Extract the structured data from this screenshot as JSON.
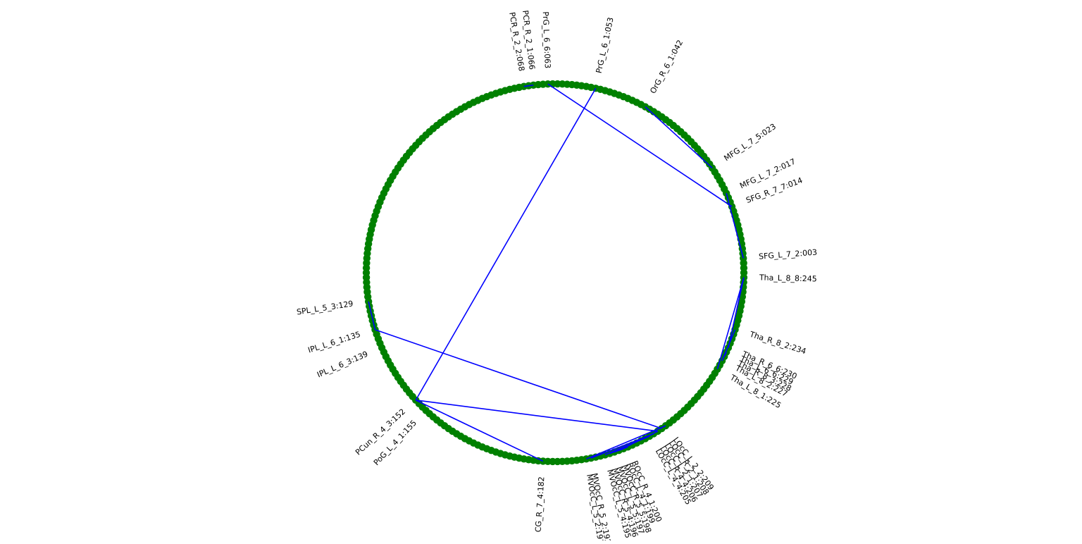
{
  "diagram": {
    "type": "connectogram",
    "node_count": 246,
    "colors": {
      "node": "#008000",
      "edge": "#0000ff",
      "label": "#000000"
    },
    "labeled_nodes": [
      {
        "label": "SFG_L_7_2:003",
        "index": 3
      },
      {
        "label": "SFG_R_7_7:014",
        "index": 14
      },
      {
        "label": "MFG_L_7_2:017",
        "index": 17
      },
      {
        "label": "MFG_L_7_5:023",
        "index": 23
      },
      {
        "label": "OrG_R_6_1:042",
        "index": 42
      },
      {
        "label": "PrG_L_6_1:053",
        "index": 53
      },
      {
        "label": "PrG_L_6_6:063",
        "index": 63
      },
      {
        "label": "PCR_R_2_1:066",
        "index": 66
      },
      {
        "label": "PCR_R_2_2:068",
        "index": 68
      },
      {
        "label": "SPL_L_5_3:129",
        "index": 129
      },
      {
        "label": "IPL_L_6_1:135",
        "index": 135
      },
      {
        "label": "IPL_L_6_3:139",
        "index": 139
      },
      {
        "label": "PCun_R_4_3:152",
        "index": 152
      },
      {
        "label": "PoG_L_4_1:155",
        "index": 155
      },
      {
        "label": "CG_R_7_4:182",
        "index": 182
      },
      {
        "label": "MVOcC_L_5_2:191",
        "index": 191
      },
      {
        "label": "MVOcC_R_5_2:192",
        "index": 192
      },
      {
        "label": "MVOcC_L_5_4:195",
        "index": 195
      },
      {
        "label": "MVOcC_R_5_4:196",
        "index": 196
      },
      {
        "label": "MVOcC_L_5_5:197",
        "index": 197
      },
      {
        "label": "MVOcC_R_5_5:198",
        "index": 198
      },
      {
        "label": "ROcC_L_4_1:199",
        "index": 199
      },
      {
        "label": "ROcC_R_4_1:200",
        "index": 200
      },
      {
        "label": "LOcC_L_4_4:205",
        "index": 205
      },
      {
        "label": "LOcC_R_4_4:206",
        "index": 206
      },
      {
        "label": "LOcC_L_2_1:207",
        "index": 207
      },
      {
        "label": "LOcC_R_2_1:208",
        "index": 208
      },
      {
        "label": "LOcC_L_2_2:209",
        "index": 209
      },
      {
        "label": "Tha_L_8_1:225",
        "index": 225
      },
      {
        "label": "Tha_L_8_2:227",
        "index": 227
      },
      {
        "label": "Tha_R_8_3:228",
        "index": 228
      },
      {
        "label": "Tha_L_6_6:229",
        "index": 229
      },
      {
        "label": "Tha_R_6_6:230",
        "index": 230
      },
      {
        "label": "Tha_R_8_2:234",
        "index": 234
      },
      {
        "label": "Tha_L_8_8:245",
        "index": 245
      }
    ],
    "edges": [
      [
        3,
        17
      ],
      [
        14,
        63
      ],
      [
        23,
        42
      ],
      [
        66,
        68
      ],
      [
        129,
        135
      ],
      [
        135,
        208
      ],
      [
        152,
        53
      ],
      [
        152,
        182
      ],
      [
        152,
        207
      ],
      [
        191,
        209
      ],
      [
        192,
        206
      ],
      [
        195,
        205
      ],
      [
        196,
        200
      ],
      [
        197,
        199
      ],
      [
        198,
        207
      ],
      [
        225,
        245
      ],
      [
        227,
        234
      ],
      [
        228,
        229
      ],
      [
        230,
        245
      ]
    ]
  }
}
